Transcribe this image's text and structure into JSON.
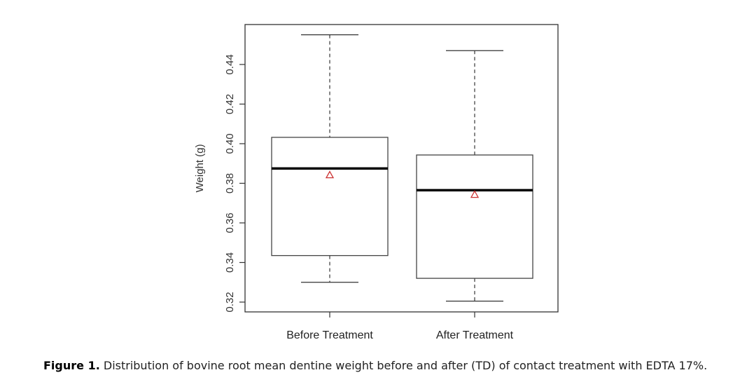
{
  "chart_data": {
    "type": "box",
    "title": "",
    "xlabel": "",
    "ylabel": "Weight (g)",
    "ylim": [
      0.315,
      0.458
    ],
    "yticks": [
      0.32,
      0.34,
      0.36,
      0.38,
      0.4,
      0.42,
      0.44
    ],
    "ytick_labels": [
      "0.32",
      "0.34",
      "0.36",
      "0.38",
      "0.40",
      "0.42",
      "0.44"
    ],
    "categories": [
      "Before Treatment",
      "After Treatment"
    ],
    "series": [
      {
        "name": "Before Treatment",
        "whisker_low": 0.33,
        "q1": 0.3435,
        "median": 0.3875,
        "q3": 0.4032,
        "whisker_high": 0.455,
        "mean": 0.3842
      },
      {
        "name": "After Treatment",
        "whisker_low": 0.3205,
        "q1": 0.332,
        "median": 0.3765,
        "q3": 0.3943,
        "whisker_high": 0.447,
        "mean": 0.3743
      }
    ],
    "mean_marker": "triangle",
    "mean_color": "#cc3333",
    "grid": false
  },
  "caption": {
    "label": "Figure 1.",
    "text": " Distribution of bovine root mean dentine weight before and after (TD) of contact treatment with EDTA 17%."
  }
}
